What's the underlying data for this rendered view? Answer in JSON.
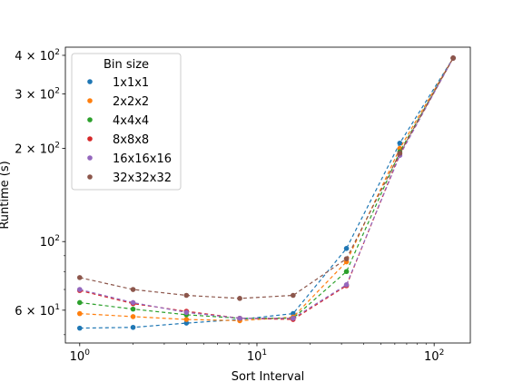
{
  "chart_data": {
    "type": "line",
    "xlabel": "Sort Interval",
    "ylabel": "Runtime (s)",
    "x_scale": "log",
    "y_scale": "log",
    "xlim": [
      0.83,
      160
    ],
    "ylim": [
      47,
      425
    ],
    "x_ticks": [
      {
        "value": 1,
        "base": "10",
        "exp": "0"
      },
      {
        "value": 10,
        "base": "10",
        "exp": "1"
      },
      {
        "value": 100,
        "base": "10",
        "exp": "2"
      }
    ],
    "y_ticks": [
      {
        "value": 60,
        "coef": "6",
        "base": "10",
        "exp": "1"
      },
      {
        "value": 100,
        "coef": "",
        "base": "10",
        "exp": "2"
      },
      {
        "value": 200,
        "coef": "2",
        "base": "10",
        "exp": "2"
      },
      {
        "value": 300,
        "coef": "3",
        "base": "10",
        "exp": "2"
      },
      {
        "value": 400,
        "coef": "4",
        "base": "10",
        "exp": "2"
      }
    ],
    "legend": {
      "title": "Bin size",
      "placement": "upper-left"
    },
    "x": [
      1,
      2,
      4,
      8,
      16,
      32,
      64,
      128
    ],
    "series": [
      {
        "name": "1x1x1",
        "color": "#1f77b4",
        "values": [
          52.5,
          52.8,
          54.5,
          56,
          58.5,
          95,
          208,
          392
        ]
      },
      {
        "name": "2x2x2",
        "color": "#ff7f0e",
        "values": [
          58.5,
          57.2,
          56,
          55.5,
          57,
          86,
          200,
          392
        ]
      },
      {
        "name": "4x4x4",
        "color": "#2ca02c",
        "values": [
          63.5,
          60.5,
          58,
          56.5,
          56.5,
          80,
          195,
          392
        ]
      },
      {
        "name": "8x8x8",
        "color": "#d62728",
        "values": [
          69.5,
          63,
          59.5,
          56.5,
          56,
          72,
          192,
          392
        ]
      },
      {
        "name": "16x16x16",
        "color": "#9467bd",
        "values": [
          70,
          63.5,
          59,
          56.5,
          56.5,
          72.5,
          190,
          392
        ]
      },
      {
        "name": "32x32x32",
        "color": "#8c564b",
        "values": [
          76.5,
          70,
          67,
          65.5,
          67,
          88,
          193,
          392
        ]
      }
    ]
  }
}
